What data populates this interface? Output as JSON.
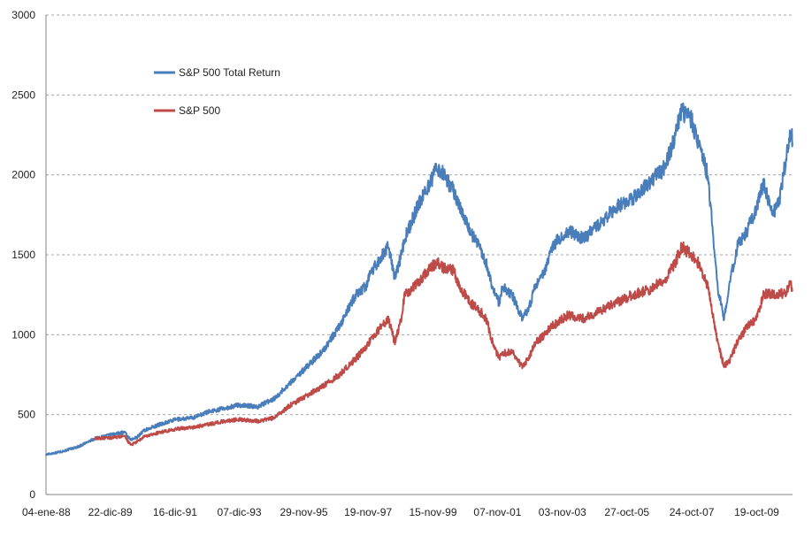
{
  "chart_data": {
    "type": "line",
    "title": "",
    "xlabel": "",
    "ylabel": "",
    "ylim": [
      0,
      3000
    ],
    "yticks": [
      0,
      500,
      1000,
      1500,
      2000,
      2500,
      3000
    ],
    "x_range": [
      1988.0,
      2010.9
    ],
    "xticks": [
      {
        "label": "04-ene-88",
        "year": 1988.01
      },
      {
        "label": "22-dic-89",
        "year": 1989.97
      },
      {
        "label": "16-dic-91",
        "year": 1991.96
      },
      {
        "label": "07-dic-93",
        "year": 1993.93
      },
      {
        "label": "29-nov-95",
        "year": 1995.91
      },
      {
        "label": "19-nov-97",
        "year": 1997.88
      },
      {
        "label": "15-nov-99",
        "year": 1999.87
      },
      {
        "label": "07-nov-01",
        "year": 2001.85
      },
      {
        "label": "03-nov-03",
        "year": 2003.84
      },
      {
        "label": "27-oct-05",
        "year": 2005.82
      },
      {
        "label": "24-oct-07",
        "year": 2007.81
      },
      {
        "label": "19-oct-09",
        "year": 2009.8
      }
    ],
    "grid": true,
    "legend_position": "top-left",
    "series": [
      {
        "name": "S&P 500 Total Return",
        "color": "#4a7ebb",
        "x": [
          1988.0,
          1988.5,
          1989.0,
          1989.5,
          1990.0,
          1990.4,
          1990.6,
          1990.8,
          1991.0,
          1991.5,
          1992.0,
          1992.5,
          1993.0,
          1993.5,
          1993.9,
          1994.5,
          1995.0,
          1995.5,
          1996.0,
          1996.5,
          1997.0,
          1997.5,
          1997.8,
          1998.0,
          1998.5,
          1998.7,
          1998.9,
          1999.0,
          1999.3,
          1999.5,
          1999.8,
          2000.0,
          2000.2,
          2000.5,
          2000.7,
          2001.0,
          2001.3,
          2001.5,
          2001.7,
          2001.9,
          2002.0,
          2002.3,
          2002.6,
          2002.8,
          2003.0,
          2003.3,
          2003.5,
          2004.0,
          2004.5,
          2005.0,
          2005.5,
          2006.0,
          2006.5,
          2007.0,
          2007.3,
          2007.5,
          2007.8,
          2008.0,
          2008.3,
          2008.6,
          2008.8,
          2009.0,
          2009.2,
          2009.5,
          2009.8,
          2010.0,
          2010.3,
          2010.5,
          2010.7,
          2010.85,
          2010.9
        ],
        "values": [
          250,
          270,
          300,
          350,
          375,
          390,
          340,
          360,
          400,
          440,
          470,
          480,
          520,
          540,
          560,
          550,
          600,
          700,
          800,
          900,
          1050,
          1250,
          1300,
          1400,
          1550,
          1350,
          1500,
          1600,
          1750,
          1850,
          1950,
          2050,
          2000,
          1900,
          1800,
          1650,
          1550,
          1450,
          1300,
          1200,
          1300,
          1250,
          1100,
          1150,
          1300,
          1400,
          1550,
          1650,
          1600,
          1700,
          1800,
          1850,
          1950,
          2050,
          2250,
          2400,
          2350,
          2200,
          2000,
          1300,
          1100,
          1350,
          1550,
          1650,
          1800,
          1950,
          1750,
          1850,
          2100,
          2280,
          2200
        ]
      },
      {
        "name": "S&P 500",
        "color": "#be4b48",
        "x": [
          1989.5,
          1990.0,
          1990.4,
          1990.6,
          1990.8,
          1991.0,
          1991.5,
          1992.0,
          1992.5,
          1993.0,
          1993.5,
          1993.9,
          1994.5,
          1995.0,
          1995.5,
          1996.0,
          1996.5,
          1997.0,
          1997.5,
          1997.8,
          1998.0,
          1998.5,
          1998.7,
          1998.9,
          1999.0,
          1999.3,
          1999.5,
          1999.8,
          2000.0,
          2000.2,
          2000.5,
          2000.7,
          2001.0,
          2001.3,
          2001.5,
          2001.7,
          2001.9,
          2002.0,
          2002.3,
          2002.6,
          2002.8,
          2003.0,
          2003.3,
          2003.5,
          2004.0,
          2004.5,
          2005.0,
          2005.5,
          2006.0,
          2006.5,
          2007.0,
          2007.3,
          2007.5,
          2007.8,
          2008.0,
          2008.3,
          2008.6,
          2008.8,
          2009.0,
          2009.2,
          2009.5,
          2009.8,
          2010.0,
          2010.3,
          2010.5,
          2010.7,
          2010.85,
          2010.9
        ],
        "values": [
          350,
          355,
          365,
          310,
          330,
          360,
          390,
          410,
          420,
          440,
          460,
          470,
          460,
          480,
          560,
          620,
          680,
          750,
          850,
          920,
          980,
          1100,
          950,
          1100,
          1250,
          1300,
          1350,
          1420,
          1450,
          1420,
          1400,
          1300,
          1200,
          1150,
          1100,
          950,
          850,
          880,
          900,
          800,
          850,
          950,
          1000,
          1050,
          1120,
          1100,
          1150,
          1200,
          1250,
          1280,
          1350,
          1450,
          1550,
          1500,
          1450,
          1300,
          950,
          800,
          850,
          950,
          1050,
          1100,
          1250,
          1260,
          1250,
          1270,
          1330,
          1270
        ]
      }
    ]
  }
}
